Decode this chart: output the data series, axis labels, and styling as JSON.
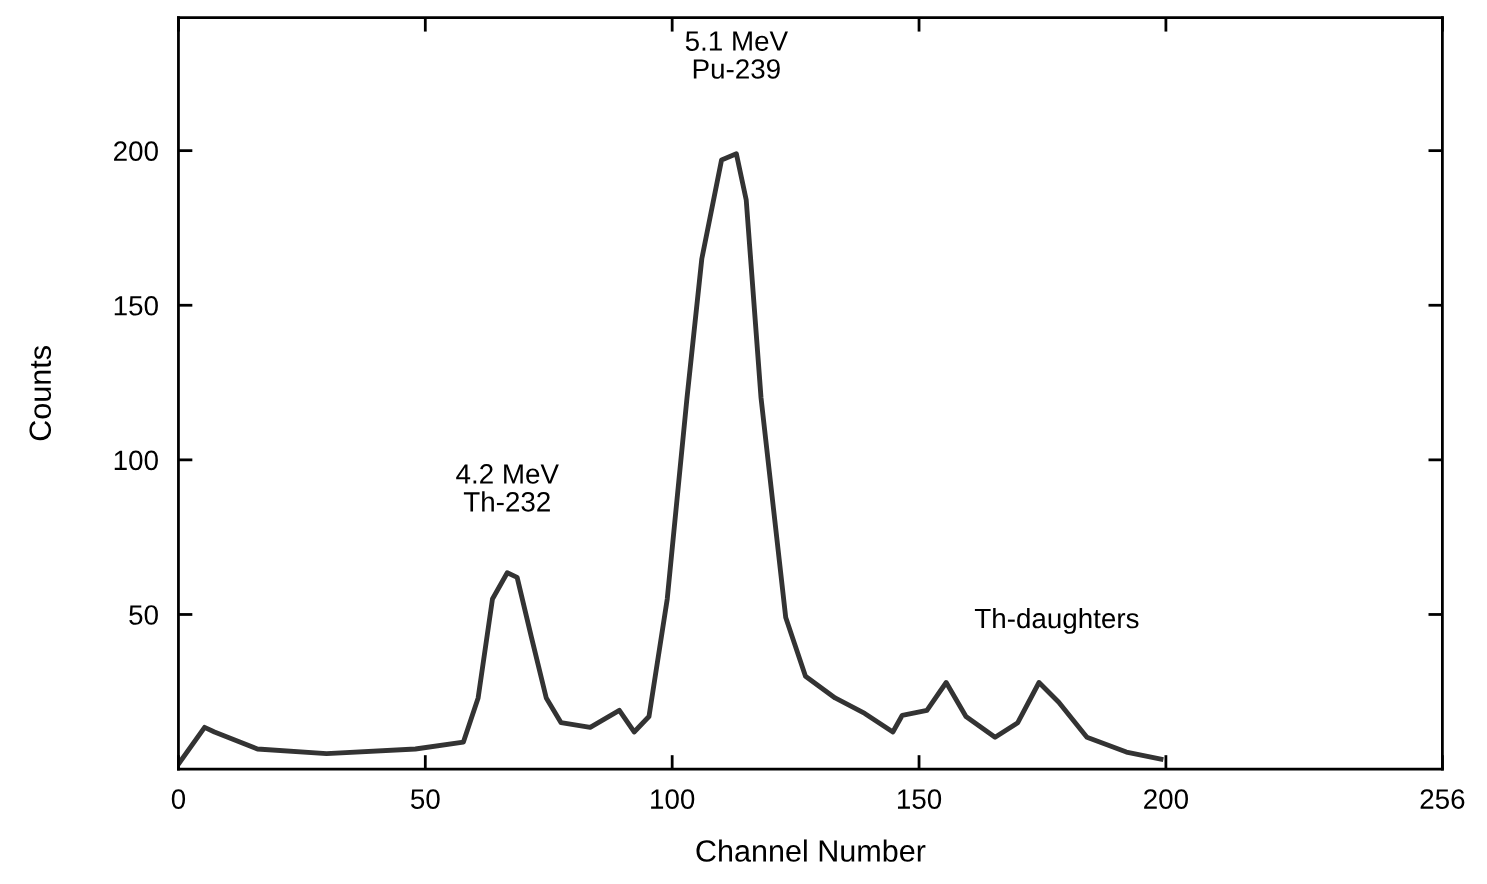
{
  "chart_data": {
    "type": "line",
    "xlabel": "Channel Number",
    "ylabel": "Counts",
    "xlim": [
      0,
      256
    ],
    "xticks": [
      0,
      50,
      100,
      150,
      200,
      256
    ],
    "ylim": [
      0,
      243
    ],
    "yticks": [
      50,
      100,
      150,
      200
    ],
    "x": [
      0,
      5.3,
      7.3,
      16,
      30,
      48,
      57.7,
      60.7,
      63.6,
      66.6,
      68.6,
      71.5,
      74.5,
      77.5,
      83.4,
      89.3,
      92.3,
      95.3,
      99,
      103,
      106,
      110,
      113,
      115,
      118,
      123,
      127,
      133,
      139,
      144.7,
      146.6,
      151.6,
      155.5,
      159.5,
      165.4,
      170,
      174.3,
      178.3,
      184,
      192,
      199
    ],
    "series": [
      {
        "color": "#333333",
        "values": [
          1.6,
          13.5,
          12,
          6.5,
          5,
          6.5,
          8.7,
          23,
          55,
          63.5,
          62,
          42.6,
          23,
          15,
          13.5,
          19,
          12,
          17,
          55,
          120,
          165,
          197,
          199,
          184,
          120,
          49,
          30,
          23,
          18,
          12,
          17.4,
          19,
          28,
          17,
          10.3,
          15,
          28,
          21.6,
          10.3,
          5.5,
          3.2
        ]
      }
    ],
    "annotations": [
      {
        "text": "4.2 MeV\nTh-232",
        "x": 66.6,
        "y": 63.5
      },
      {
        "text": "5.1 MeV\nPu-239",
        "x": 113,
        "y": 199
      },
      "Th-daughters"
    ],
    "grid": false,
    "legend": false,
    "marker": "none",
    "line_style": "solid"
  }
}
